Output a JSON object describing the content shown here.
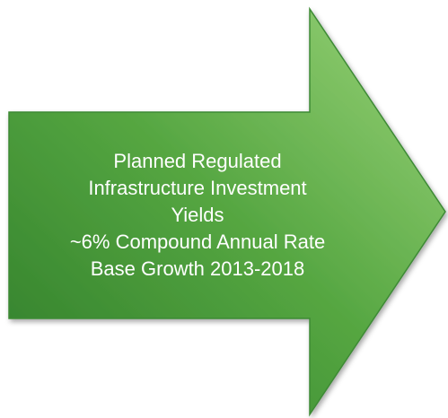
{
  "arrow": {
    "lines": [
      "Planned Regulated",
      "Infrastructure Investment",
      "Yields",
      "~6% Compound Annual Rate",
      "Base Growth 2013-2018"
    ]
  }
}
